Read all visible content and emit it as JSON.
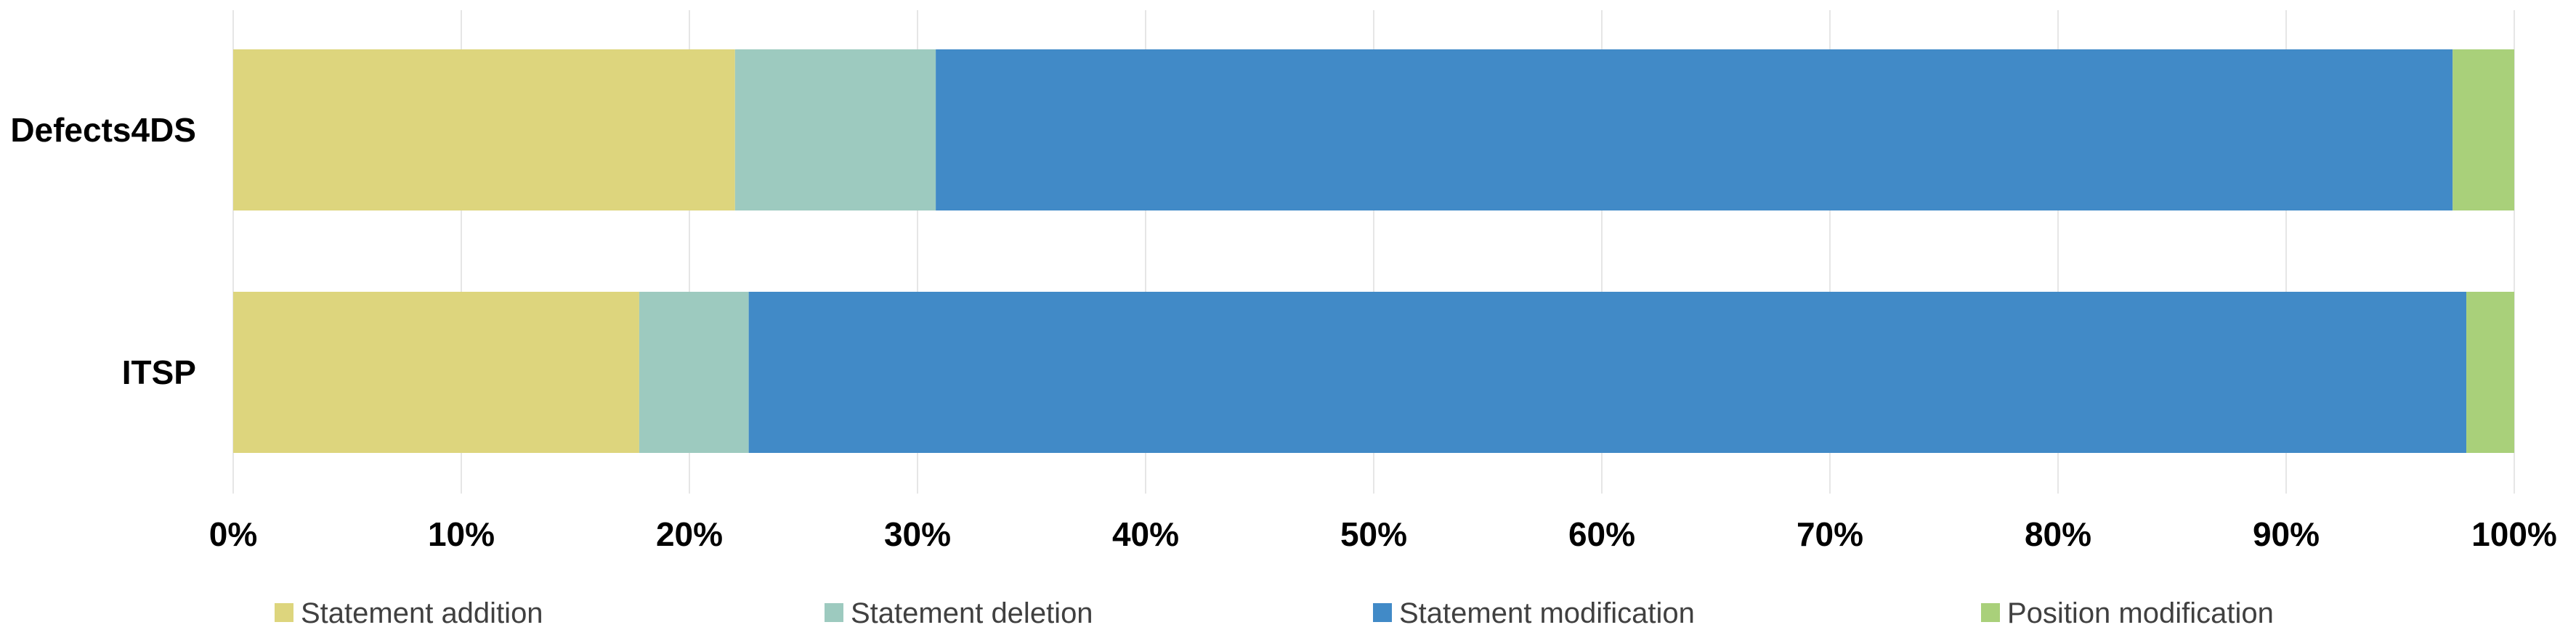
{
  "chart_data": {
    "type": "bar",
    "orientation": "horizontal",
    "stacked": "percent",
    "categories": [
      "Defects4DS",
      "ITSP"
    ],
    "series": [
      {
        "name": "Statement addition",
        "color": "#DDD57D",
        "values": [
          22.0,
          17.8
        ]
      },
      {
        "name": "Statement deletion",
        "color": "#9DCABF",
        "values": [
          8.8,
          4.8
        ]
      },
      {
        "name": "Statement modification",
        "color": "#418AC7",
        "values": [
          66.5,
          75.3
        ]
      },
      {
        "name": "Position modification",
        "color": "#A9D07A",
        "values": [
          2.7,
          2.1
        ]
      }
    ],
    "x_ticks": [
      "0%",
      "10%",
      "20%",
      "30%",
      "40%",
      "50%",
      "60%",
      "70%",
      "80%",
      "90%",
      "100%"
    ],
    "xlim": [
      0,
      100
    ],
    "grid": true,
    "legend_position": "bottom"
  }
}
